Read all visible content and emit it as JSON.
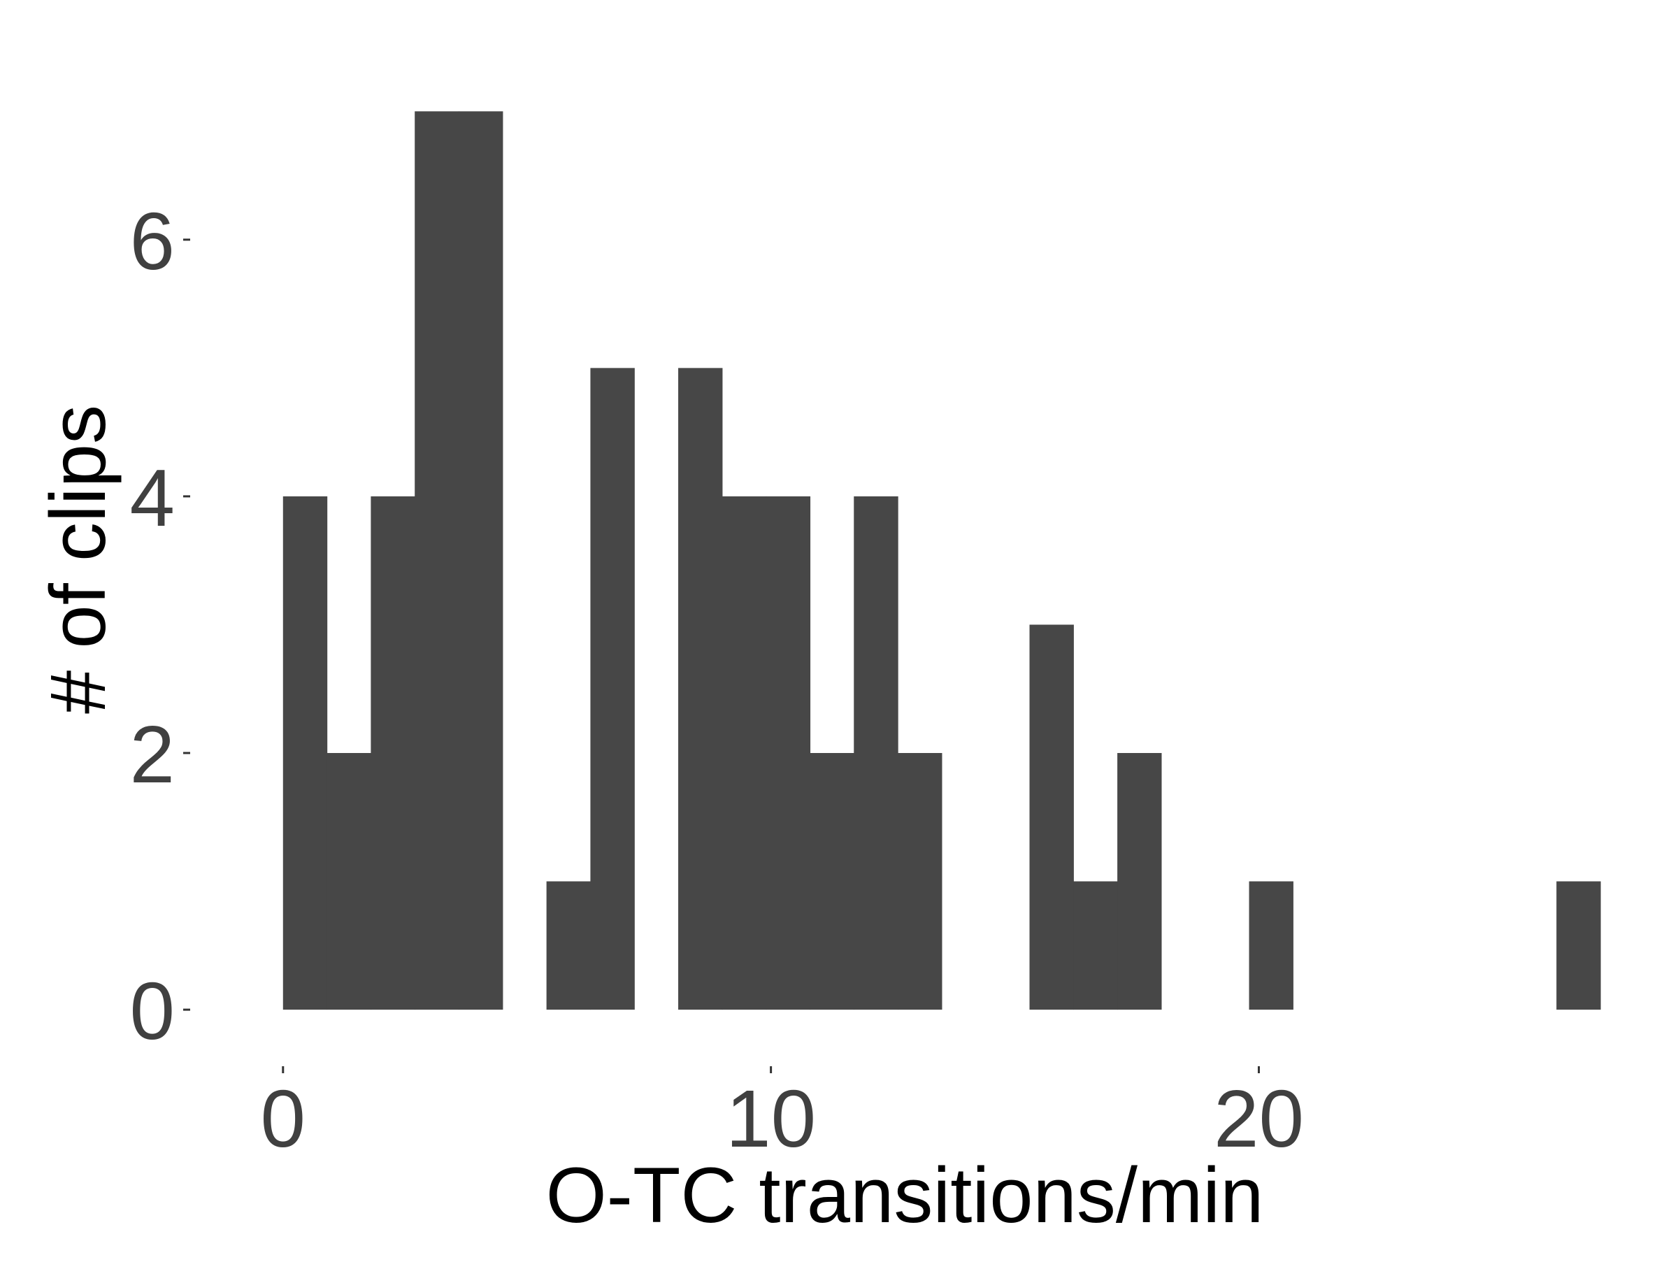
{
  "chart_data": {
    "type": "bar",
    "title": "",
    "xlabel": "O-TC transitions/min",
    "ylabel": "# of clips",
    "bin_width": 0.9,
    "bins": [
      {
        "x": 0.0,
        "value": 4
      },
      {
        "x": 0.9,
        "value": 2
      },
      {
        "x": 1.8,
        "value": 4
      },
      {
        "x": 2.7,
        "value": 7
      },
      {
        "x": 3.6,
        "value": 7
      },
      {
        "x": 5.4,
        "value": 1
      },
      {
        "x": 6.3,
        "value": 5
      },
      {
        "x": 8.1,
        "value": 5
      },
      {
        "x": 9.0,
        "value": 4
      },
      {
        "x": 9.9,
        "value": 4
      },
      {
        "x": 10.8,
        "value": 2
      },
      {
        "x": 11.7,
        "value": 4
      },
      {
        "x": 12.6,
        "value": 2
      },
      {
        "x": 15.3,
        "value": 3
      },
      {
        "x": 16.2,
        "value": 1
      },
      {
        "x": 17.1,
        "value": 2
      },
      {
        "x": 19.8,
        "value": 1
      },
      {
        "x": 26.1,
        "value": 1
      }
    ],
    "xlim": [
      -1.0,
      26.8
    ],
    "ylim": [
      -0.25,
      7.35
    ],
    "x_ticks": [
      {
        "value": 0,
        "label": "0"
      },
      {
        "value": 10,
        "label": "10"
      },
      {
        "value": 20,
        "label": "20"
      }
    ],
    "y_ticks": [
      {
        "value": 0,
        "label": "0"
      },
      {
        "value": 2,
        "label": "2"
      },
      {
        "value": 4,
        "label": "4"
      },
      {
        "value": 6,
        "label": "6"
      }
    ],
    "grid": false,
    "legend": "none",
    "colors": {
      "bar": "#474747",
      "tick_label": "#404040",
      "tick_mark": "#333333",
      "axis_title": "#000000"
    }
  }
}
